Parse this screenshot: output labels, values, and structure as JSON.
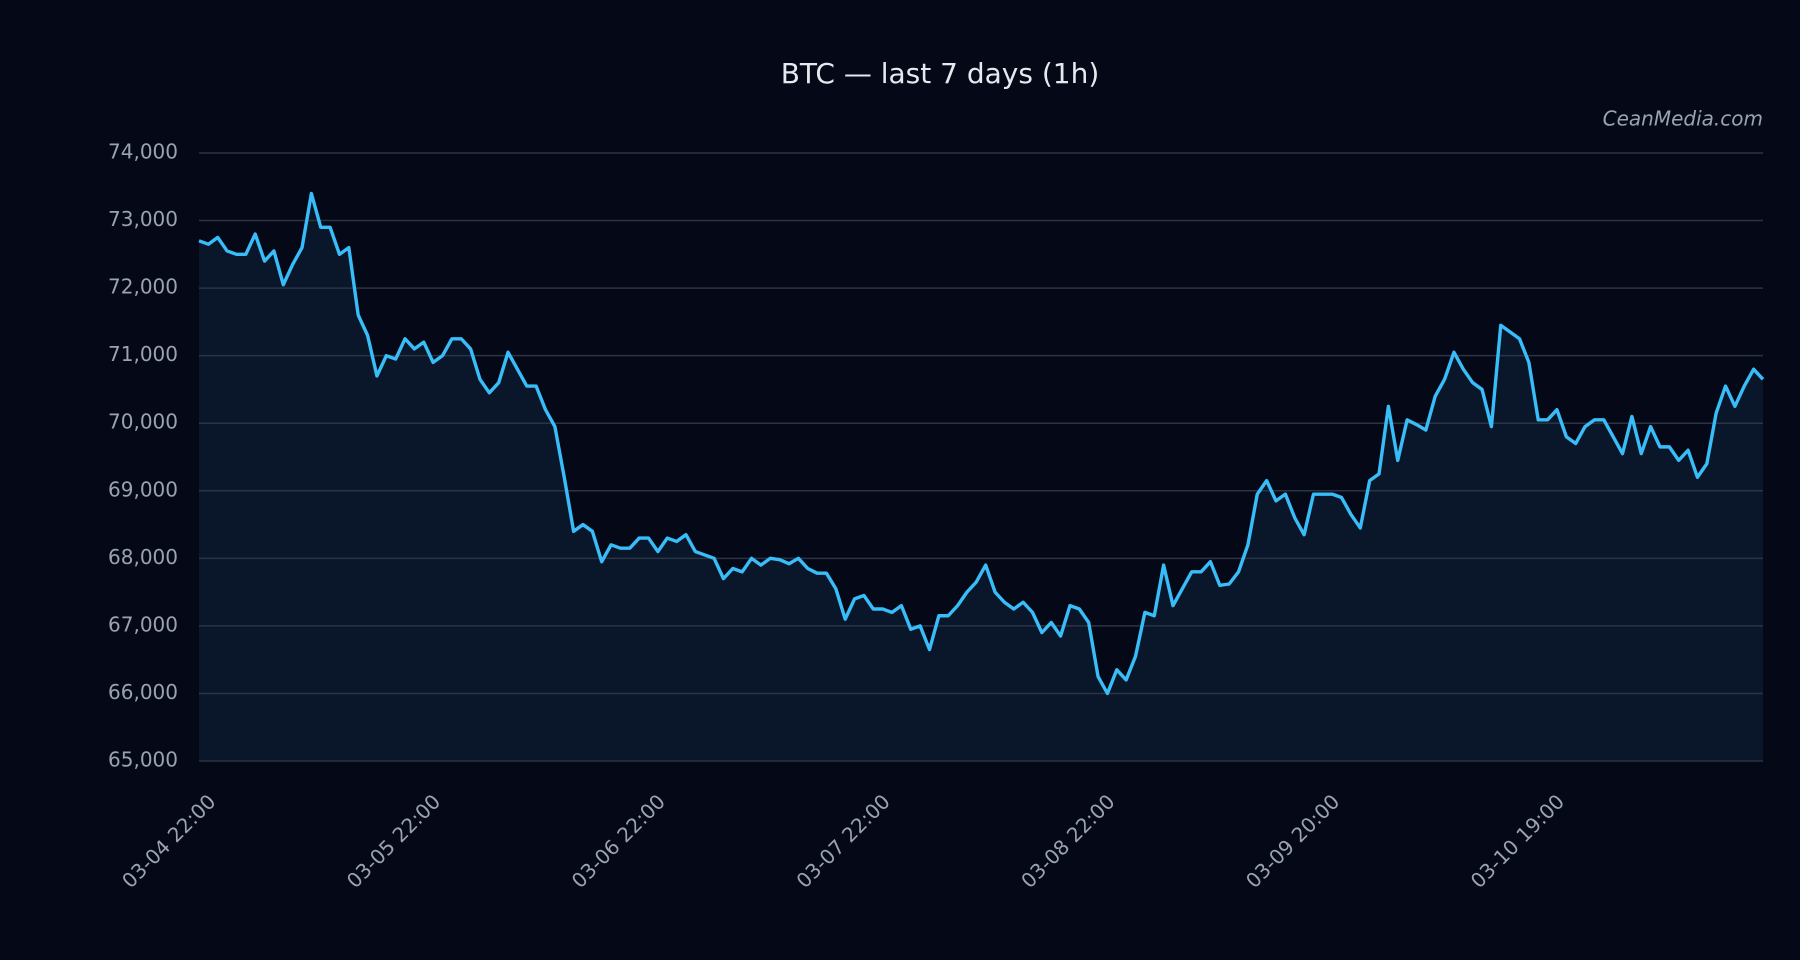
{
  "chart_data": {
    "type": "line",
    "title": "BTC — last 7 days (1h)",
    "watermark": "CeanMedia.com",
    "categories": [
      "03-04 22:00",
      null,
      null,
      null,
      null,
      null,
      null,
      null,
      null,
      null,
      null,
      null,
      null,
      null,
      null,
      null,
      null,
      null,
      null,
      null,
      null,
      null,
      null,
      null,
      "03-05 22:00",
      null,
      null,
      null,
      null,
      null,
      null,
      null,
      null,
      null,
      null,
      null,
      null,
      null,
      null,
      null,
      null,
      null,
      null,
      null,
      null,
      null,
      null,
      null,
      "03-06 22:00",
      null,
      null,
      null,
      null,
      null,
      null,
      null,
      null,
      null,
      null,
      null,
      null,
      null,
      null,
      null,
      null,
      null,
      null,
      null,
      null,
      null,
      null,
      null,
      "03-07 22:00",
      null,
      null,
      null,
      null,
      null,
      null,
      null,
      null,
      null,
      null,
      null,
      null,
      null,
      null,
      null,
      null,
      null,
      null,
      null,
      null,
      null,
      null,
      null,
      "03-08 22:00",
      null,
      null,
      null,
      null,
      null,
      null,
      null,
      null,
      null,
      null,
      null,
      null,
      null,
      null,
      null,
      null,
      null,
      null,
      null,
      null,
      null,
      null,
      null,
      "03-09 20:00",
      null,
      null,
      null,
      null,
      null,
      null,
      null,
      null,
      null,
      null,
      null,
      null,
      null,
      null,
      null,
      null,
      null,
      null,
      null,
      null,
      null,
      null,
      null,
      "03-10 19:00",
      null,
      null,
      null,
      null,
      null,
      null,
      null,
      null,
      null,
      null,
      null,
      null,
      null,
      null,
      null,
      null,
      null,
      null,
      null,
      null,
      null,
      null,
      null
    ],
    "values": [
      72700,
      72650,
      72750,
      72550,
      72500,
      72500,
      72800,
      72400,
      72550,
      72050,
      72350,
      72600,
      73400,
      72900,
      72900,
      72500,
      72600,
      71600,
      71300,
      70700,
      71000,
      70950,
      71250,
      71100,
      71200,
      70900,
      71000,
      71250,
      71250,
      71100,
      70650,
      70450,
      70600,
      71050,
      70800,
      70550,
      70550,
      70200,
      69950,
      69200,
      68400,
      68500,
      68400,
      67950,
      68200,
      68150,
      68150,
      68300,
      68300,
      68100,
      68300,
      68250,
      68350,
      68100,
      68050,
      68000,
      67700,
      67850,
      67800,
      68000,
      67900,
      68000,
      67980,
      67920,
      68000,
      67850,
      67780,
      67780,
      67550,
      67100,
      67400,
      67450,
      67250,
      67250,
      67200,
      67300,
      66950,
      67000,
      66650,
      67150,
      67150,
      67300,
      67500,
      67650,
      67900,
      67500,
      67350,
      67250,
      67350,
      67200,
      66900,
      67050,
      66850,
      67300,
      67250,
      67050,
      66250,
      66000,
      66350,
      66200,
      66550,
      67200,
      67150,
      67900,
      67300,
      67550,
      67800,
      67800,
      67950,
      67600,
      67620,
      67800,
      68200,
      68950,
      69150,
      68850,
      68950,
      68600,
      68350,
      68950,
      68950,
      68950,
      68900,
      68650,
      68450,
      69150,
      69250,
      70250,
      69450,
      70050,
      69980,
      69900,
      70400,
      70650,
      71050,
      70800,
      70600,
      70500,
      69950,
      71450,
      71350,
      71250,
      70900,
      70050,
      70050,
      70200,
      69800,
      69700,
      69950,
      70050,
      70050,
      69800,
      69550,
      70100,
      69550,
      69950,
      69650,
      69650,
      69450,
      69600,
      69200,
      69400,
      70150,
      70550,
      70250,
      70550,
      70800,
      70650
    ],
    "color": "#38bdf8",
    "area_color": "#0a1629",
    "ylim": [
      65000,
      74000
    ],
    "yticks": [
      {
        "value": 65000,
        "label": "65,000"
      },
      {
        "value": 66000,
        "label": "66,000"
      },
      {
        "value": 67000,
        "label": "67,000"
      },
      {
        "value": 68000,
        "label": "68,000"
      },
      {
        "value": 69000,
        "label": "69,000"
      },
      {
        "value": 70000,
        "label": "70,000"
      },
      {
        "value": 71000,
        "label": "71,000"
      },
      {
        "value": 72000,
        "label": "72,000"
      },
      {
        "value": 73000,
        "label": "73,000"
      },
      {
        "value": 74000,
        "label": "74,000"
      }
    ],
    "grid": true
  }
}
